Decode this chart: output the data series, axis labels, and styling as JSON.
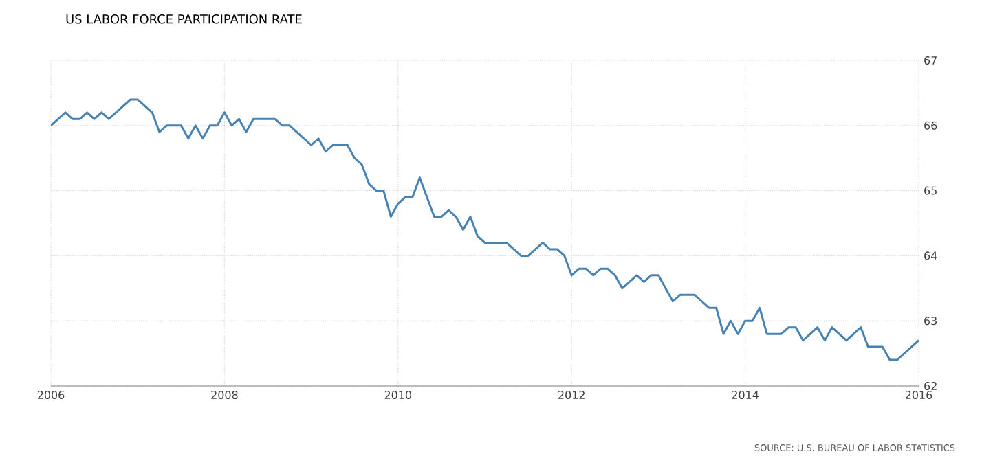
{
  "chart_data": {
    "type": "line",
    "title": "US LABOR FORCE PARTICIPATION RATE",
    "annotations": [
      "SOURCE: U.S. BUREAU OF LABOR STATISTICS"
    ],
    "x": [
      2006.0,
      2006.083,
      2006.167,
      2006.25,
      2006.333,
      2006.417,
      2006.5,
      2006.583,
      2006.667,
      2006.75,
      2006.833,
      2006.917,
      2007.0,
      2007.083,
      2007.167,
      2007.25,
      2007.333,
      2007.417,
      2007.5,
      2007.583,
      2007.667,
      2007.75,
      2007.833,
      2007.917,
      2008.0,
      2008.083,
      2008.167,
      2008.25,
      2008.333,
      2008.417,
      2008.5,
      2008.583,
      2008.667,
      2008.75,
      2008.833,
      2008.917,
      2009.0,
      2009.083,
      2009.167,
      2009.25,
      2009.333,
      2009.417,
      2009.5,
      2009.583,
      2009.667,
      2009.75,
      2009.833,
      2009.917,
      2010.0,
      2010.083,
      2010.167,
      2010.25,
      2010.333,
      2010.417,
      2010.5,
      2010.583,
      2010.667,
      2010.75,
      2010.833,
      2010.917,
      2011.0,
      2011.083,
      2011.167,
      2011.25,
      2011.333,
      2011.417,
      2011.5,
      2011.583,
      2011.667,
      2011.75,
      2011.833,
      2011.917,
      2012.0,
      2012.083,
      2012.167,
      2012.25,
      2012.333,
      2012.417,
      2012.5,
      2012.583,
      2012.667,
      2012.75,
      2012.833,
      2012.917,
      2013.0,
      2013.083,
      2013.167,
      2013.25,
      2013.333,
      2013.417,
      2013.5,
      2013.583,
      2013.667,
      2013.75,
      2013.833,
      2013.917,
      2014.0,
      2014.083,
      2014.167,
      2014.25,
      2014.333,
      2014.417,
      2014.5,
      2014.583,
      2014.667,
      2014.75,
      2014.833,
      2014.917,
      2015.0,
      2015.083,
      2015.167,
      2015.25,
      2015.333,
      2015.417,
      2015.5,
      2015.583,
      2015.667,
      2015.75,
      2015.833,
      2015.917,
      2016.0
    ],
    "series": [
      {
        "color": "#4682b4",
        "values": [
          66.0,
          66.1,
          66.2,
          66.1,
          66.1,
          66.2,
          66.1,
          66.2,
          66.1,
          66.2,
          66.3,
          66.4,
          66.4,
          66.3,
          66.2,
          65.9,
          66.0,
          66.0,
          66.0,
          65.8,
          66.0,
          65.8,
          66.0,
          66.0,
          66.2,
          66.0,
          66.1,
          65.9,
          66.1,
          66.1,
          66.1,
          66.1,
          66.0,
          66.0,
          65.9,
          65.8,
          65.7,
          65.8,
          65.6,
          65.7,
          65.7,
          65.7,
          65.5,
          65.4,
          65.1,
          65.0,
          65.0,
          64.6,
          64.8,
          64.9,
          64.9,
          65.2,
          64.9,
          64.6,
          64.6,
          64.7,
          64.6,
          64.4,
          64.6,
          64.3,
          64.2,
          64.2,
          64.2,
          64.2,
          64.1,
          64.0,
          64.0,
          64.1,
          64.2,
          64.1,
          64.1,
          64.0,
          63.7,
          63.8,
          63.8,
          63.7,
          63.8,
          63.8,
          63.7,
          63.5,
          63.6,
          63.7,
          63.6,
          63.7,
          63.7,
          63.5,
          63.3,
          63.4,
          63.4,
          63.4,
          63.3,
          63.2,
          63.2,
          62.8,
          63.0,
          62.8,
          63.0,
          63.0,
          63.2,
          62.8,
          62.8,
          62.8,
          62.9,
          62.9,
          62.7,
          62.8,
          62.9,
          62.7,
          62.9,
          62.8,
          62.7,
          62.8,
          62.9,
          62.6,
          62.6,
          62.6,
          62.4,
          62.4,
          62.5,
          62.6,
          62.7
        ]
      }
    ],
    "xlim": [
      2006,
      2016
    ],
    "ylim": [
      62,
      67
    ],
    "xticks": [
      2006,
      2008,
      2010,
      2012,
      2014,
      2016
    ],
    "yticks": [
      62,
      63,
      64,
      65,
      66,
      67
    ],
    "grid": true,
    "marker": "none",
    "line_style": "solid"
  }
}
